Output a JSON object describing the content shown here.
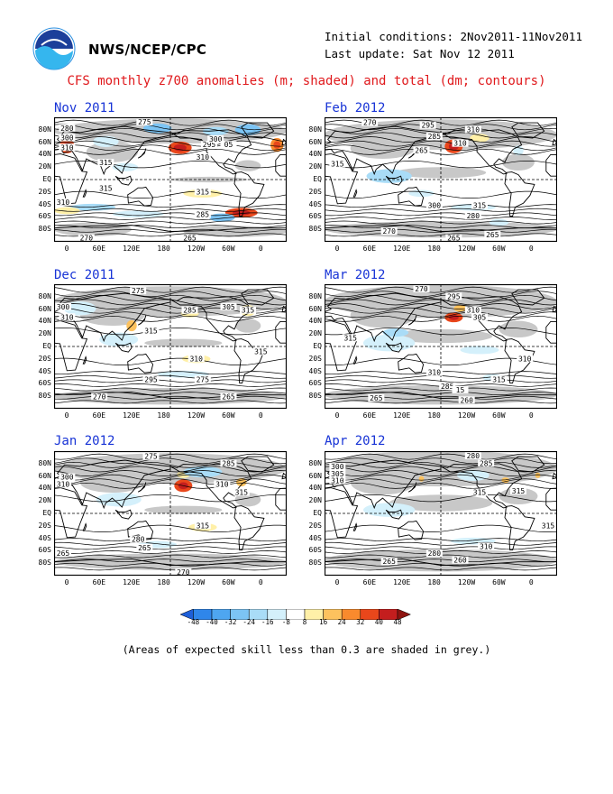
{
  "header": {
    "agency": "NWS/NCEP/CPC",
    "initial_conditions": "Initial conditions: 2Nov2011-11Nov2011",
    "last_update": "Last update: Sat Nov 12 2011",
    "title": "CFS monthly z700 anomalies (m; shaded) and total (dm; contours)",
    "logo_icon": "noaa-logo-icon"
  },
  "axes": {
    "lat_labels": [
      "80N",
      "60N",
      "40N",
      "20N",
      "EQ",
      "20S",
      "40S",
      "60S",
      "80S"
    ],
    "lon_labels": [
      "0",
      "60E",
      "120E",
      "180",
      "120W",
      "60W",
      "0"
    ]
  },
  "colors": {
    "land_outline": "#000000",
    "low_skill_grey": "#c8c8c8",
    "ocean_white": "#ffffff"
  },
  "panels": [
    {
      "month": "Nov 2011",
      "labels": [
        "280",
        "300",
        "310",
        "315",
        "275",
        "295",
        "310",
        "300",
        "05",
        "315",
        "310",
        "315",
        "285",
        "270",
        "265"
      ]
    },
    {
      "month": "Dec 2011",
      "labels": [
        "275",
        "300",
        "310",
        "315",
        "285",
        "305",
        "315",
        "310",
        "315",
        "295",
        "275",
        "265",
        "270"
      ]
    },
    {
      "month": "Jan 2012",
      "labels": [
        "275",
        "285",
        "310",
        "315",
        "310",
        "300",
        "265",
        "280",
        "315",
        "265",
        "270"
      ]
    },
    {
      "month": "Feb 2012",
      "labels": [
        "270",
        "295",
        "285",
        "310",
        "315",
        "265",
        "310",
        "315",
        "300",
        "280",
        "270",
        "265",
        "265"
      ]
    },
    {
      "month": "Mar 2012",
      "labels": [
        "270",
        "295",
        "310",
        "305",
        "315",
        "310",
        "315",
        "285",
        "15",
        "265",
        "260",
        "310"
      ]
    },
    {
      "month": "Apr 2012",
      "labels": [
        "280",
        "285",
        "300",
        "305",
        "310",
        "315",
        "315",
        "280",
        "260",
        "265",
        "315",
        "310"
      ]
    }
  ],
  "colorbar": {
    "labels": [
      "-48",
      "-40",
      "-32",
      "-24",
      "-16",
      "-8",
      "8",
      "16",
      "24",
      "32",
      "40",
      "48"
    ],
    "colors": [
      "#1e5fd8",
      "#2f86ea",
      "#4ea6f0",
      "#7cc4f4",
      "#a9dcf7",
      "#d4f0fb",
      "#ffffff",
      "#fff0a8",
      "#fdc25e",
      "#f98a2d",
      "#e9471b",
      "#c41e1e",
      "#8e1410"
    ]
  },
  "footer": "(Areas of expected skill less than 0.3 are shaded in grey.)"
}
